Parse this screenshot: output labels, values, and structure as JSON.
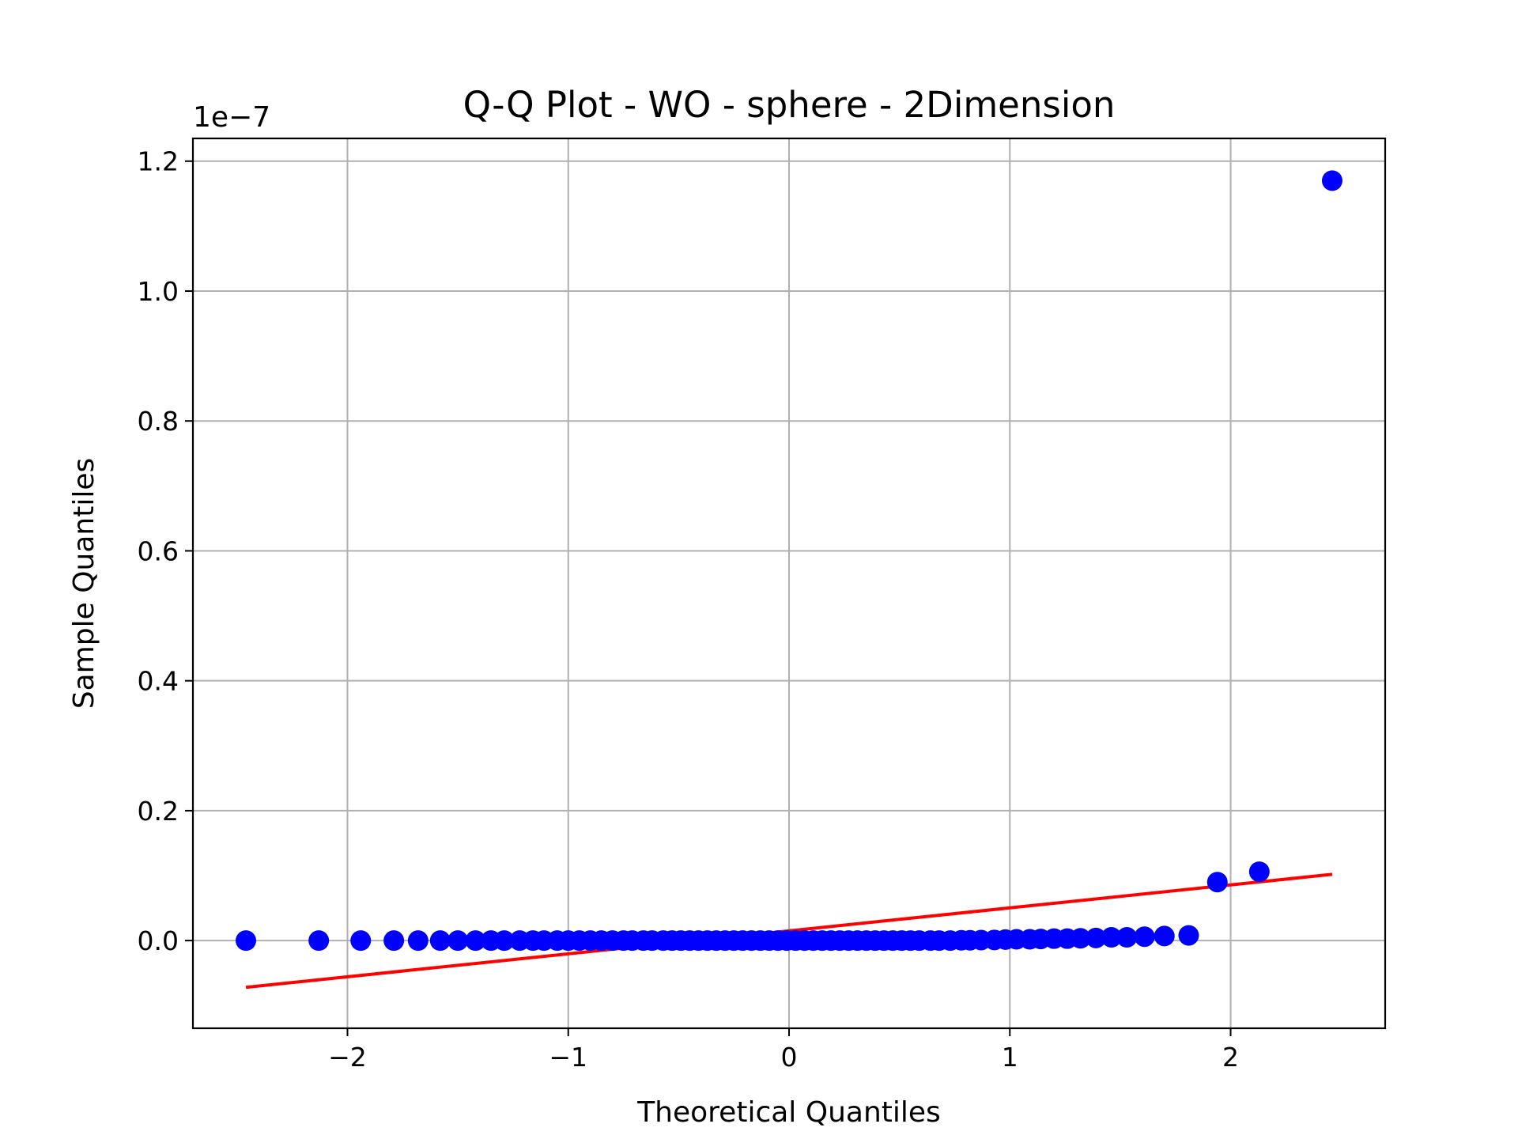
{
  "chart_data": {
    "type": "scatter",
    "title": "Q-Q Plot - WO - sphere - 2Dimension",
    "xlabel": "Theoretical Quantiles",
    "ylabel": "Sample Quantiles",
    "y_offset_label": "1e−7",
    "y_scale": 1e-07,
    "xlim": [
      -2.7,
      2.7
    ],
    "ylim": [
      -0.135,
      1.235
    ],
    "x_ticks": [
      -2,
      -1,
      0,
      1,
      2
    ],
    "x_tick_labels": [
      "−2",
      "−1",
      "0",
      "1",
      "2"
    ],
    "y_ticks": [
      0.0,
      0.2,
      0.4,
      0.6,
      0.8,
      1.0,
      1.2
    ],
    "y_tick_labels": [
      "0.0",
      "0.2",
      "0.4",
      "0.6",
      "0.8",
      "1.0",
      "1.2"
    ],
    "grid": true,
    "marker_color": "#0000ff",
    "line_color": "#ff0000",
    "points": [
      {
        "x": -2.46,
        "y": 0.0
      },
      {
        "x": -2.13,
        "y": 0.0
      },
      {
        "x": -1.94,
        "y": 0.0
      },
      {
        "x": -1.79,
        "y": 0.0
      },
      {
        "x": -1.68,
        "y": 0.0
      },
      {
        "x": -1.58,
        "y": 0.0
      },
      {
        "x": -1.5,
        "y": 0.0
      },
      {
        "x": -1.42,
        "y": 0.0
      },
      {
        "x": -1.35,
        "y": 0.0
      },
      {
        "x": -1.29,
        "y": 0.0
      },
      {
        "x": -1.22,
        "y": 0.0
      },
      {
        "x": -1.16,
        "y": 0.0
      },
      {
        "x": -1.11,
        "y": 0.0
      },
      {
        "x": -1.05,
        "y": 0.0
      },
      {
        "x": -1.0,
        "y": 0.0
      },
      {
        "x": -0.95,
        "y": 0.0
      },
      {
        "x": -0.9,
        "y": 0.0
      },
      {
        "x": -0.85,
        "y": 0.0
      },
      {
        "x": -0.8,
        "y": 0.0
      },
      {
        "x": -0.75,
        "y": 0.0
      },
      {
        "x": -0.71,
        "y": 0.0
      },
      {
        "x": -0.66,
        "y": 0.0
      },
      {
        "x": -0.62,
        "y": 0.0
      },
      {
        "x": -0.57,
        "y": 0.0
      },
      {
        "x": -0.53,
        "y": 0.0
      },
      {
        "x": -0.49,
        "y": 0.0
      },
      {
        "x": -0.45,
        "y": 0.0
      },
      {
        "x": -0.41,
        "y": 0.0
      },
      {
        "x": -0.37,
        "y": 0.0
      },
      {
        "x": -0.33,
        "y": 0.0
      },
      {
        "x": -0.29,
        "y": 0.0
      },
      {
        "x": -0.25,
        "y": 0.0
      },
      {
        "x": -0.21,
        "y": 0.0
      },
      {
        "x": -0.17,
        "y": 0.0
      },
      {
        "x": -0.13,
        "y": 0.0
      },
      {
        "x": -0.09,
        "y": 0.0
      },
      {
        "x": -0.05,
        "y": 0.0
      },
      {
        "x": -0.01,
        "y": 0.0
      },
      {
        "x": 0.03,
        "y": 0.0
      },
      {
        "x": 0.07,
        "y": 0.0
      },
      {
        "x": 0.11,
        "y": 0.0
      },
      {
        "x": 0.15,
        "y": 0.0
      },
      {
        "x": 0.19,
        "y": 0.0
      },
      {
        "x": 0.23,
        "y": 0.0
      },
      {
        "x": 0.27,
        "y": 0.0
      },
      {
        "x": 0.31,
        "y": 0.0
      },
      {
        "x": 0.35,
        "y": 0.0
      },
      {
        "x": 0.39,
        "y": 0.0
      },
      {
        "x": 0.43,
        "y": 0.0
      },
      {
        "x": 0.47,
        "y": 0.0
      },
      {
        "x": 0.51,
        "y": 0.0
      },
      {
        "x": 0.55,
        "y": 0.0
      },
      {
        "x": 0.59,
        "y": 0.0
      },
      {
        "x": 0.64,
        "y": 0.0
      },
      {
        "x": 0.68,
        "y": 0.0
      },
      {
        "x": 0.73,
        "y": 0.0
      },
      {
        "x": 0.78,
        "y": 0.0005
      },
      {
        "x": 0.82,
        "y": 0.0005
      },
      {
        "x": 0.87,
        "y": 0.0008
      },
      {
        "x": 0.93,
        "y": 0.001
      },
      {
        "x": 0.98,
        "y": 0.0015
      },
      {
        "x": 1.03,
        "y": 0.002
      },
      {
        "x": 1.09,
        "y": 0.002
      },
      {
        "x": 1.14,
        "y": 0.0025
      },
      {
        "x": 1.2,
        "y": 0.003
      },
      {
        "x": 1.26,
        "y": 0.003
      },
      {
        "x": 1.32,
        "y": 0.0035
      },
      {
        "x": 1.39,
        "y": 0.004
      },
      {
        "x": 1.46,
        "y": 0.005
      },
      {
        "x": 1.53,
        "y": 0.005
      },
      {
        "x": 1.61,
        "y": 0.006
      },
      {
        "x": 1.7,
        "y": 0.007
      },
      {
        "x": 1.81,
        "y": 0.008
      },
      {
        "x": 1.94,
        "y": 0.09
      },
      {
        "x": 2.13,
        "y": 0.106
      },
      {
        "x": 2.46,
        "y": 1.17
      }
    ],
    "fit_line": {
      "x": [
        -2.46,
        2.46
      ],
      "y": [
        -0.072,
        0.102
      ]
    }
  }
}
